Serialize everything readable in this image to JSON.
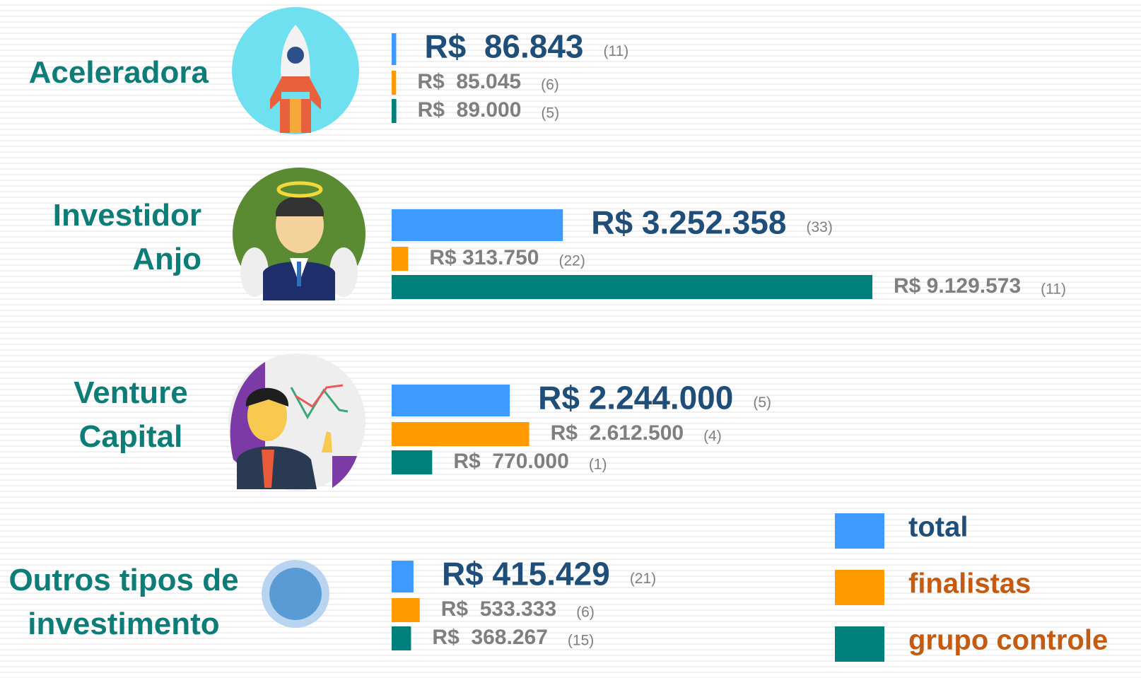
{
  "chart_data": {
    "type": "bar",
    "orientation": "horizontal",
    "categories": [
      "Aceleradora",
      "Investidor Anjo",
      "Venture Capital",
      "Outros tipos de investimento"
    ],
    "series": [
      {
        "name": "total",
        "color": "#3d9bff",
        "label_color": "#1f4e79",
        "values": [
          86843,
          3252358,
          2244000,
          415429
        ],
        "value_labels": [
          "R$  86.843",
          "R$ 3.252.358",
          "R$ 2.244.000",
          "R$ 415.429"
        ],
        "counts": [
          "(11)",
          "(33)",
          "(5)",
          "(21)"
        ]
      },
      {
        "name": "finalistas",
        "color": "#ff9a00",
        "label_color": "#c55a11",
        "values": [
          85045,
          313750,
          2612500,
          533333
        ],
        "value_labels": [
          "R$  85.045",
          "R$ 313.750",
          "R$  2.612.500",
          "R$  533.333"
        ],
        "counts": [
          "(6)",
          "(22)",
          "(4)",
          "(6)"
        ]
      },
      {
        "name": "grupo controle",
        "color": "#00807a",
        "label_color": "#c55a11",
        "values": [
          89000,
          9129573,
          770000,
          368267
        ],
        "value_labels": [
          "R$  89.000",
          "R$ 9.129.573",
          "R$  770.000",
          "R$  368.267"
        ],
        "counts": [
          "(5)",
          "(11)",
          "(1)",
          "(15)"
        ]
      }
    ]
  }
}
